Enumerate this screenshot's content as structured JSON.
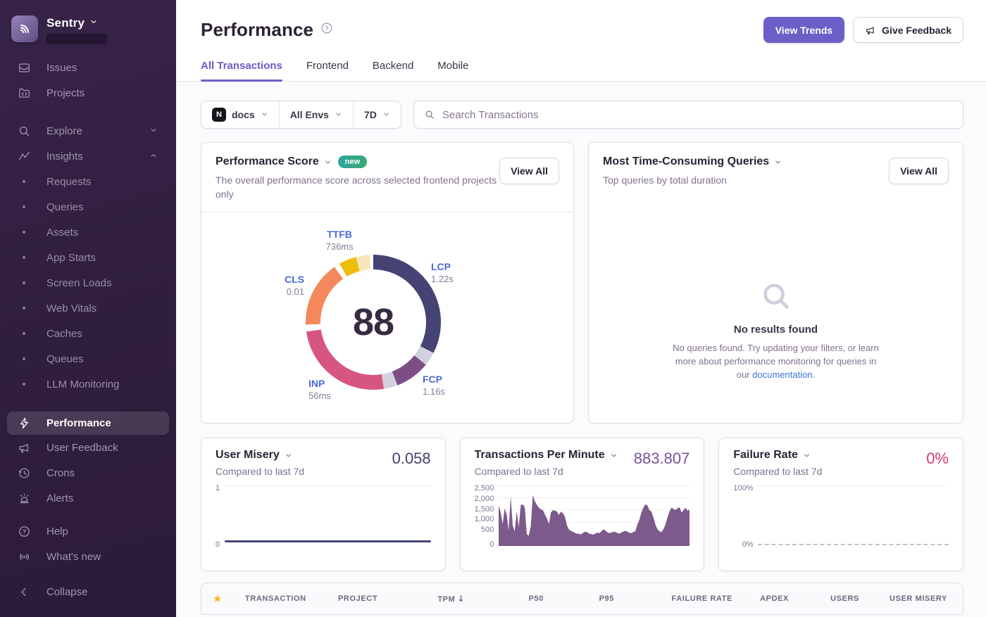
{
  "app": {
    "brand": "Sentry"
  },
  "sidebar": {
    "main": [
      {
        "label": "Issues"
      },
      {
        "label": "Projects"
      }
    ],
    "explore": {
      "label": "Explore"
    },
    "insights": {
      "label": "Insights"
    },
    "insights_subitems": [
      "Requests",
      "Queries",
      "Assets",
      "App Starts",
      "Screen Loads",
      "Web Vitals",
      "Caches",
      "Queues",
      "LLM Monitoring"
    ],
    "lower": [
      {
        "label": "Performance"
      },
      {
        "label": "User Feedback"
      },
      {
        "label": "Crons"
      },
      {
        "label": "Alerts"
      }
    ],
    "footer": [
      {
        "label": "Help"
      },
      {
        "label": "What's new"
      }
    ],
    "collapse": "Collapse"
  },
  "header": {
    "title": "Performance",
    "view_trends": "View Trends",
    "give_feedback": "Give Feedback"
  },
  "tabs": [
    {
      "label": "All Transactions",
      "active": true
    },
    {
      "label": "Frontend"
    },
    {
      "label": "Backend"
    },
    {
      "label": "Mobile"
    }
  ],
  "filters": {
    "project_initial": "N",
    "project": "docs",
    "env": "All Envs",
    "period": "7D",
    "search_placeholder": "Search Transactions"
  },
  "cards": {
    "performance_score": {
      "title": "Performance Score",
      "badge": "new",
      "subtitle": "The overall performance score across selected frontend projects only",
      "view_all": "View All",
      "score": 88,
      "metrics": [
        {
          "name": "TTFB",
          "value": "736ms"
        },
        {
          "name": "LCP",
          "value": "1.22s"
        },
        {
          "name": "CLS",
          "value": "0.01"
        },
        {
          "name": "INP",
          "value": "56ms"
        },
        {
          "name": "FCP",
          "value": "1.16s"
        }
      ],
      "donut": {
        "segments": [
          {
            "name": "lcp",
            "color": "#454274",
            "start": 0,
            "end": 117
          },
          {
            "name": "separator",
            "color": "#d3d1e0",
            "start": 117,
            "end": 129
          },
          {
            "name": "fcp",
            "color": "#7d4e86",
            "start": 129,
            "end": 159
          },
          {
            "name": "separator",
            "color": "#d3d1e0",
            "start": 159,
            "end": 171
          },
          {
            "name": "inp",
            "color": "#d75680",
            "start": 171,
            "end": 262
          },
          {
            "name": "gap",
            "color": "#ffffff",
            "start": 262,
            "end": 268
          },
          {
            "name": "cls",
            "color": "#f4885c",
            "start": 268,
            "end": 325
          },
          {
            "name": "gap",
            "color": "#ffffff",
            "start": 325,
            "end": 330
          },
          {
            "name": "ttfb",
            "color": "#eebe0c",
            "start": 330,
            "end": 345
          },
          {
            "name": "ttfb-light",
            "color": "#f9e6ba",
            "start": 345,
            "end": 357
          },
          {
            "name": "gap",
            "color": "#ffffff",
            "start": 357,
            "end": 360
          }
        ]
      }
    },
    "queries": {
      "title": "Most Time-Consuming Queries",
      "subtitle": "Top queries by total duration",
      "view_all": "View All",
      "empty_title": "No results found",
      "empty_line1": "No queries found. Try updating your filters, or learn",
      "empty_line2": "more about performance monitoring for queries in",
      "empty_prefix": "our ",
      "empty_link": "documentation",
      "empty_suffix": "."
    },
    "user_misery": {
      "title": "User Misery",
      "value": "0.058",
      "subtitle": "Compared to last 7d",
      "chart": {
        "type": "line",
        "color": "#444674",
        "ylim": [
          0,
          1
        ],
        "y_top": "1",
        "y_bottom": "0",
        "values": [
          0.058,
          0.058
        ]
      }
    },
    "tpm": {
      "title": "Transactions Per Minute",
      "value": "883.807",
      "subtitle": "Compared to last 7d",
      "chart": {
        "type": "area",
        "color": "#7d5a8c",
        "ylim": [
          0,
          2500
        ],
        "y_ticks": [
          "2,500",
          "2,000",
          "1,500",
          "1,000",
          "500",
          "0"
        ],
        "values": [
          1650,
          1400,
          900,
          1550,
          1300,
          650,
          2050,
          850,
          600,
          1450,
          780,
          1680,
          1720,
          1600,
          480,
          420,
          830,
          2100,
          1850,
          1700,
          1580,
          1520,
          1480,
          1300,
          1150,
          900,
          1380,
          1480,
          1460,
          1420,
          1280,
          1420,
          1350,
          1200,
          850,
          680,
          620,
          580,
          540,
          500,
          510,
          470,
          540,
          590,
          570,
          510,
          490,
          460,
          510,
          550,
          530,
          590,
          690,
          640,
          570,
          530,
          550,
          590,
          570,
          540,
          510,
          550,
          590,
          630,
          590,
          550,
          530,
          570,
          610,
          880,
          1080,
          1380,
          1580,
          1720,
          1680,
          1480,
          1420,
          1180,
          880,
          690,
          610,
          570,
          690,
          890,
          1180,
          1430,
          1580,
          1530,
          1480,
          1560,
          1600,
          1380,
          1480,
          1580,
          1450,
          1520
        ]
      }
    },
    "failure_rate": {
      "title": "Failure Rate",
      "value": "0%",
      "subtitle": "Compared to last 7d",
      "chart": {
        "type": "line-dashed",
        "color": "#c7c0cf",
        "ylim": [
          0,
          100
        ],
        "y_top": "100%",
        "y_bottom": "0%",
        "values": [
          0,
          0
        ]
      }
    }
  },
  "table": {
    "columns": [
      "TRANSACTION",
      "PROJECT",
      "TPM",
      "P50",
      "P95",
      "FAILURE RATE",
      "APDEX",
      "USERS",
      "USER MISERY"
    ],
    "sort_column": "TPM",
    "icons": {
      "star": "★",
      "sort_desc": "↓"
    }
  }
}
